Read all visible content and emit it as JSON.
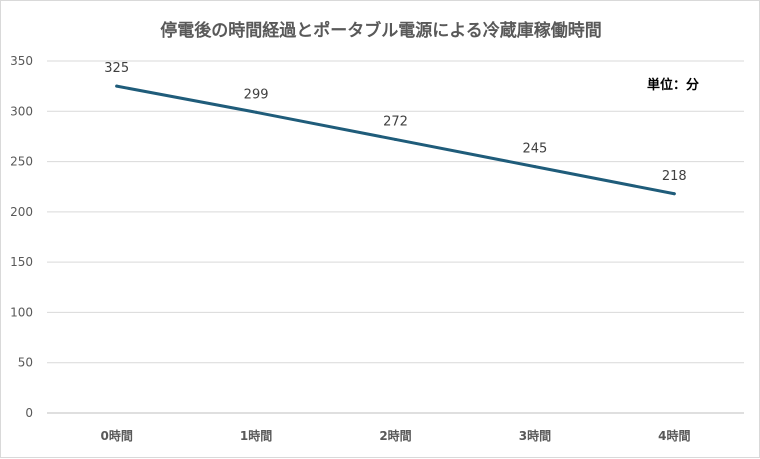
{
  "chart_data": {
    "type": "line",
    "title": "停電後の時間経過とポータブル電源による冷蔵庫稼働時間",
    "unit_note": "単位：分",
    "categories": [
      "0時間",
      "1時間",
      "2時間",
      "3時間",
      "4時間"
    ],
    "series": [
      {
        "values": [
          325,
          299,
          272,
          245,
          218
        ]
      }
    ],
    "ylim": [
      0,
      350
    ],
    "yticks": [
      0,
      50,
      100,
      150,
      200,
      250,
      300,
      350
    ],
    "grid": true,
    "data_labels": true,
    "xlabel": "",
    "ylabel": "",
    "colors": {
      "line": "#1f5c7a",
      "grid": "#d9d9d9",
      "text": "#595959"
    }
  }
}
